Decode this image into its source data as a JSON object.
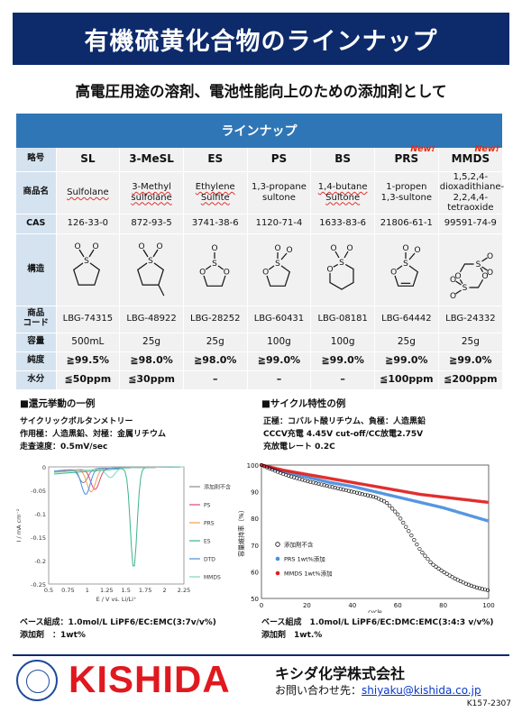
{
  "title": "有機硫黄化合物のラインナップ",
  "subtitle": "高電圧用途の溶剤、電池性能向上のための添加剤として",
  "lineup": {
    "heading": "ラインナップ",
    "row_labels": {
      "abbr": "略号",
      "name": "商品名",
      "cas": "CAS",
      "structure": "構造",
      "code": "商品\nコード",
      "capacity": "容量",
      "purity": "純度",
      "water": "水分"
    },
    "new_label": "New!",
    "products": [
      {
        "abbr": "SL",
        "name": "Sulfolane",
        "cas": "126-33-0",
        "code": "LBG-74315",
        "capacity": "500mL",
        "purity": "≧99.5%",
        "water": "≦50ppm",
        "is_new": false
      },
      {
        "abbr": "3-MeSL",
        "name": "3-Methyl sulfolane",
        "cas": "872-93-5",
        "code": "LBG-48922",
        "capacity": "25g",
        "purity": "≧98.0%",
        "water": "≦30ppm",
        "is_new": false
      },
      {
        "abbr": "ES",
        "name": "Ethylene Sulfite",
        "cas": "3741-38-6",
        "code": "LBG-28252",
        "capacity": "25g",
        "purity": "≧98.0%",
        "water": "–",
        "is_new": false
      },
      {
        "abbr": "PS",
        "name": "1,3-propane sultone",
        "cas": "1120-71-4",
        "code": "LBG-60431",
        "capacity": "100g",
        "purity": "≧99.0%",
        "water": "–",
        "is_new": false
      },
      {
        "abbr": "BS",
        "name": "1,4-butane Sultone",
        "cas": "1633-83-6",
        "code": "LBG-08181",
        "capacity": "100g",
        "purity": "≧99.0%",
        "water": "–",
        "is_new": false
      },
      {
        "abbr": "PRS",
        "name": "1-propen 1,3-sultone",
        "cas": "21806-61-1",
        "code": "LBG-64442",
        "capacity": "25g",
        "purity": "≧99.0%",
        "water": "≦100ppm",
        "is_new": true
      },
      {
        "abbr": "MMDS",
        "name": "1,5,2,4-dioxadithiane-2,2,4,4-tetraoxide",
        "cas": "99591-74-9",
        "code": "LBG-24332",
        "capacity": "25g",
        "purity": "≧99.0%",
        "water": "≦200ppm",
        "is_new": true
      }
    ]
  },
  "reduction": {
    "section_title": "■還元挙動の一例",
    "conditions": [
      "サイクリックボルタンメトリー",
      "作用極：人造黒鉛、対極：金属リチウム",
      "走査速度：0.5mV/sec"
    ],
    "footnotes": [
      "ベース組成：1.0mol/L LiPF6/EC:EMC(3:7v/v%)",
      "添加剤　：1wt%"
    ]
  },
  "cycle": {
    "section_title": "■サイクル特性の例",
    "conditions": [
      "正極：コバルト酸リチウム、負極：人造黒鉛",
      "CCCV充電 4.45V cut-off/CC放電2.75V",
      "充放電レート 0.2C"
    ],
    "footnotes": [
      "ベース組成　1.0mol/L LiPF6/EC:DMC:EMC(3:4:3 v/v%)",
      "添加剤　1wt.%"
    ]
  },
  "chart_data": [
    {
      "type": "line",
      "xlabel": "E / V vs. Li/Li⁺",
      "ylabel": "I / mA cm⁻²",
      "xlim": [
        0.5,
        2.25
      ],
      "ylim": [
        -0.25,
        0
      ],
      "x_ticks": [
        "0.5",
        "0.75",
        "1",
        "1.25",
        "1.5",
        "1.75",
        "2",
        "2.25"
      ],
      "y_ticks": [
        "0",
        "-0.05",
        "-0.1",
        "-0.15",
        "-0.2",
        "-0.25"
      ],
      "legend_position": "right",
      "series": [
        {
          "name": "添加剤不含",
          "color": "#8c8c8c",
          "peak_x": 0.95,
          "peak_y": -0.03
        },
        {
          "name": "PS",
          "color": "#e0457b",
          "peak_x": 1.1,
          "peak_y": -0.045
        },
        {
          "name": "PRS",
          "color": "#f0a050",
          "peak_x": 1.05,
          "peak_y": -0.05
        },
        {
          "name": "ES",
          "color": "#3cb48a",
          "peak_x": 1.6,
          "peak_y": -0.215
        },
        {
          "name": "DTD",
          "color": "#4a90d9",
          "peak_x": 0.98,
          "peak_y": -0.055
        },
        {
          "name": "MMDS",
          "color": "#7fd6c0",
          "peak_x": 1.3,
          "peak_y": -0.02
        }
      ]
    },
    {
      "type": "scatter",
      "xlabel": "cycle",
      "ylabel": "容量維持率（%）",
      "xlim": [
        0,
        100
      ],
      "ylim": [
        50,
        100
      ],
      "x_ticks": [
        "0",
        "20",
        "40",
        "60",
        "80",
        "100"
      ],
      "y_ticks": [
        "100",
        "90",
        "80",
        "70",
        "60",
        "50"
      ],
      "legend_position": "bottom-left",
      "series": [
        {
          "name": "添加剤不含",
          "color": "#000000",
          "x": [
            0,
            10,
            20,
            30,
            40,
            50,
            55,
            60,
            65,
            70,
            75,
            80,
            85,
            90,
            95,
            100
          ],
          "y": [
            100,
            96.5,
            94,
            92,
            90,
            88,
            86,
            81.5,
            75,
            68,
            63,
            60,
            57.5,
            55.5,
            54,
            53
          ]
        },
        {
          "name": "PRS 1wt%添加",
          "color": "#4a8fe0",
          "x": [
            0,
            10,
            20,
            30,
            40,
            50,
            60,
            70,
            80,
            90,
            100
          ],
          "y": [
            100,
            97.5,
            95.5,
            93.5,
            92,
            90,
            88,
            86,
            84,
            81.5,
            79
          ]
        },
        {
          "name": "MMDS 1wt%添加",
          "color": "#e02020",
          "x": [
            0,
            10,
            20,
            30,
            40,
            50,
            60,
            70,
            80,
            90,
            100
          ],
          "y": [
            100,
            98,
            96.5,
            95,
            93.5,
            92,
            90.5,
            89,
            88,
            87,
            86
          ]
        }
      ]
    }
  ],
  "footer": {
    "logo": "KISHIDA",
    "company": "キシダ化学株式会社",
    "contact_label": "お問い合わせ先：",
    "contact_email": "shiyaku@kishida.co.jp",
    "doc_code": "K157-2307"
  }
}
